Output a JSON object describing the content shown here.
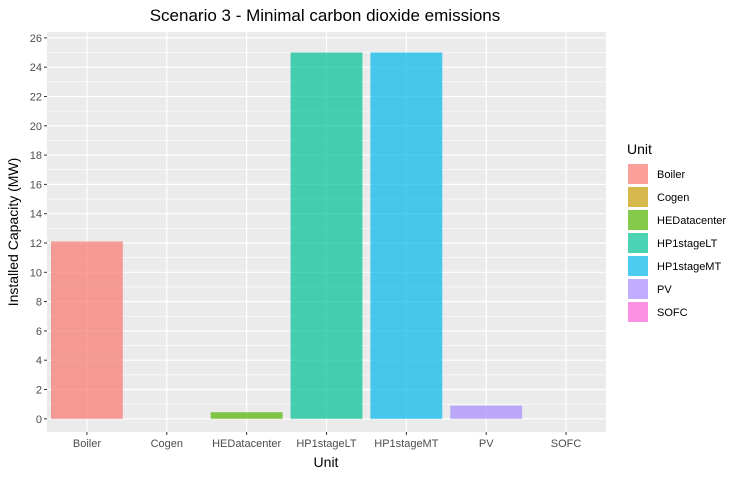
{
  "chart_data": {
    "type": "bar",
    "title": "Scenario 3 - Minimal carbon dioxide emissions",
    "xlabel": "Unit",
    "ylabel": "Installed Capacity (MW)",
    "categories": [
      "Boiler",
      "Cogen",
      "HEDatacenter",
      "HP1stageLT",
      "HP1stageMT",
      "PV",
      "SOFC"
    ],
    "values": [
      12.1,
      0,
      0.45,
      25,
      25,
      0.9,
      0
    ],
    "colors": [
      "#F8766D",
      "#C49A00",
      "#53B400",
      "#00C094",
      "#00B6EB",
      "#A58AFF",
      "#FB61D7"
    ],
    "yticks": [
      0,
      2,
      4,
      6,
      8,
      10,
      12,
      14,
      16,
      18,
      20,
      22,
      24,
      26
    ],
    "ylim": [
      -0.9,
      26.4
    ],
    "grid": true,
    "legend": {
      "title": "Unit",
      "position": "right",
      "items": [
        "Boiler",
        "Cogen",
        "HEDatacenter",
        "HP1stageLT",
        "HP1stageMT",
        "PV",
        "SOFC"
      ]
    }
  }
}
